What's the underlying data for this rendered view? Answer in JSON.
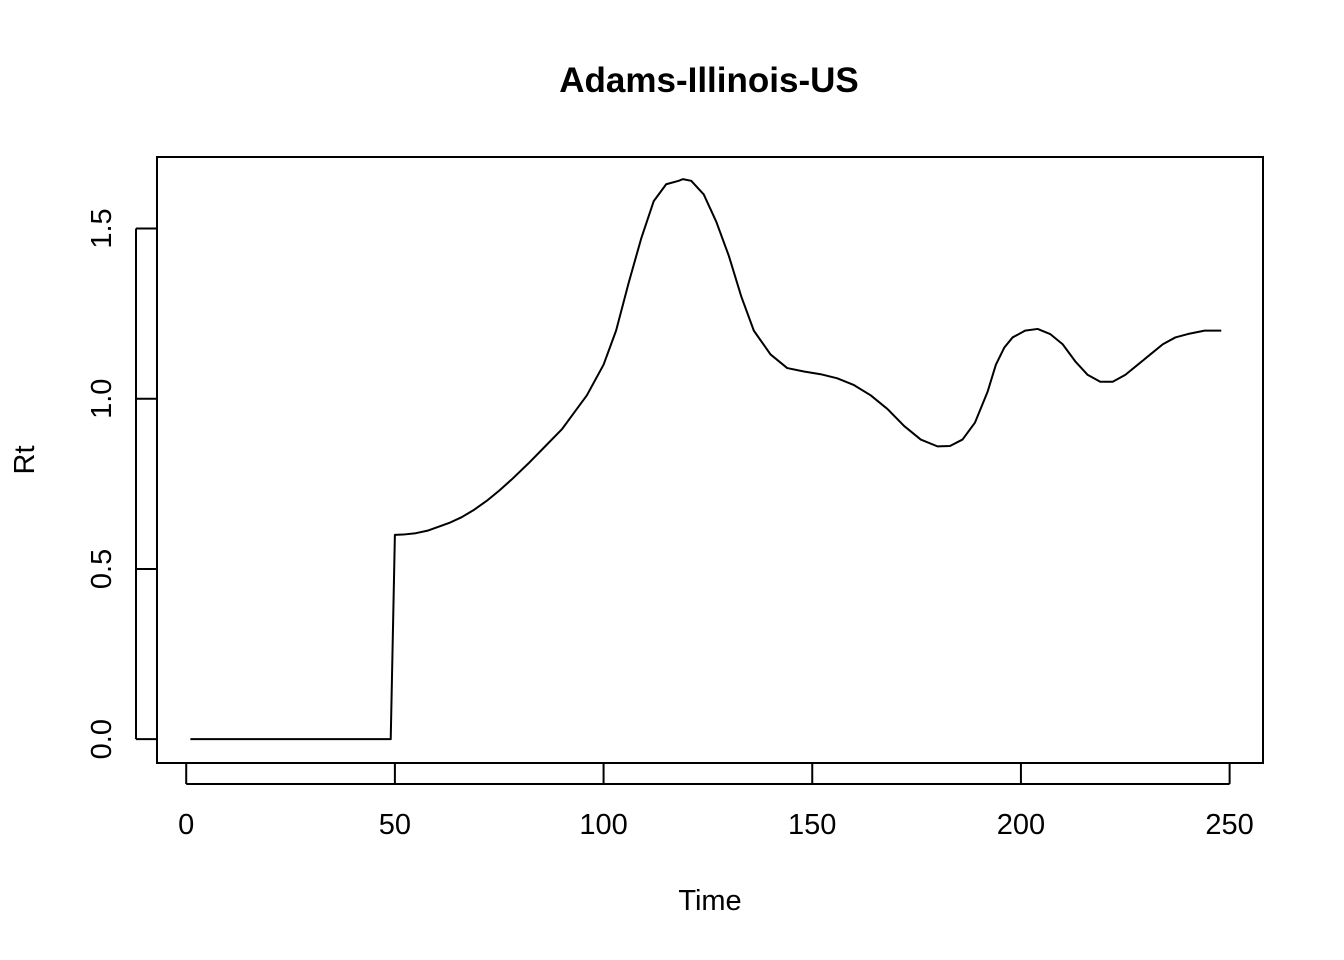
{
  "chart_data": {
    "type": "line",
    "title": "Adams-Illinois-US",
    "xlabel": "Time",
    "ylabel": "Rt",
    "xlim": [
      -7,
      258
    ],
    "ylim": [
      -0.07,
      1.71
    ],
    "xticks": [
      0,
      50,
      100,
      150,
      200,
      250
    ],
    "xtick_labels": [
      "0",
      "50",
      "100",
      "150",
      "200",
      "250"
    ],
    "yticks": [
      0.0,
      0.5,
      1.0,
      1.5
    ],
    "ytick_labels": [
      "0.0",
      "0.5",
      "1.0",
      "1.5"
    ],
    "grid": false,
    "line_color": "#000000",
    "series": [
      {
        "x": [
          1,
          10,
          20,
          30,
          40,
          49,
          50,
          52,
          55,
          58,
          60,
          63,
          66,
          69,
          72,
          75,
          78,
          82,
          86,
          90,
          93,
          96,
          100,
          103,
          106,
          109,
          112,
          115,
          118,
          119,
          121,
          124,
          127,
          130,
          133,
          136,
          140,
          144,
          148,
          152,
          156,
          160,
          164,
          168,
          172,
          176,
          180,
          183,
          186,
          189,
          192,
          194,
          196,
          198,
          201,
          204,
          207,
          210,
          213,
          216,
          219,
          222,
          225,
          228,
          231,
          234,
          237,
          240,
          244,
          248
        ],
        "y": [
          0,
          0,
          0,
          0,
          0,
          0,
          0.6,
          0.601,
          0.605,
          0.613,
          0.622,
          0.635,
          0.652,
          0.674,
          0.7,
          0.73,
          0.763,
          0.81,
          0.86,
          0.91,
          0.96,
          1.01,
          1.1,
          1.2,
          1.34,
          1.47,
          1.58,
          1.63,
          1.64,
          1.645,
          1.64,
          1.6,
          1.52,
          1.42,
          1.3,
          1.2,
          1.13,
          1.09,
          1.08,
          1.072,
          1.06,
          1.04,
          1.01,
          0.97,
          0.92,
          0.88,
          0.86,
          0.861,
          0.88,
          0.93,
          1.02,
          1.1,
          1.15,
          1.18,
          1.2,
          1.205,
          1.19,
          1.16,
          1.11,
          1.07,
          1.05,
          1.05,
          1.07,
          1.1,
          1.13,
          1.16,
          1.18,
          1.19,
          1.2,
          1.2
        ]
      }
    ]
  }
}
